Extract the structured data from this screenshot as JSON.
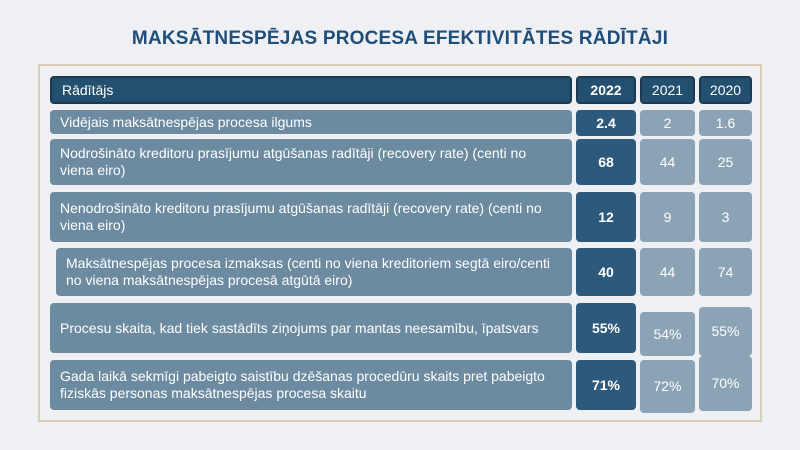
{
  "title": "MAKSĀTNESPĒJAS PROCESA EFEKTIVITĀTES RĀDĪTĀJI",
  "chart_data": {
    "type": "table",
    "header": [
      "Rādītājs",
      "2022",
      "2021",
      "2020"
    ],
    "rows": [
      {
        "label": "Vidējais maksātnespējas procesa ilgums",
        "values": [
          "2.4",
          "2",
          "1.6"
        ]
      },
      {
        "label": "Nodrošināto kreditoru prasījumu atgūšanas radītāji (recovery rate) (centi no viena eiro)",
        "values": [
          "68",
          "44",
          "25"
        ]
      },
      {
        "label": "Nenodrošināto kreditoru prasījumu atgūšanas radītāji (recovery rate) (centi no viena eiro)",
        "values": [
          "12",
          "9",
          "3"
        ]
      },
      {
        "label": "Maksātnespējas procesa izmaksas (centi no viena kreditoriem segtā eiro/centi no viena maksātnespējas procesā atgūtā eiro)",
        "values": [
          "40",
          "44",
          "74"
        ]
      },
      {
        "label": "Procesu skaita, kad tiek sastādīts ziņojums par mantas neesamību, īpatsvars",
        "values": [
          "55%",
          "54%",
          "55%"
        ]
      },
      {
        "label": "Gada laikā sekmīgi pabeigto saistību dzēšanas procedūru skaits pret pabeigto fiziskās personas maksātnespējas procesa skaitu",
        "values": [
          "71%",
          "72%",
          "70%"
        ]
      }
    ]
  }
}
